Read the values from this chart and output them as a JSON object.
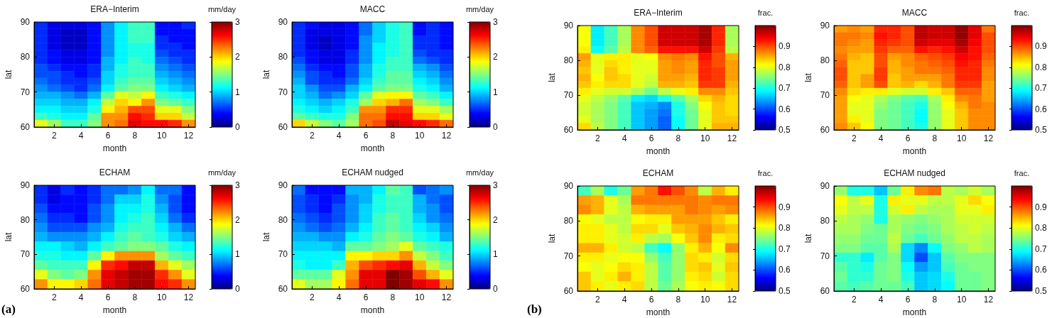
{
  "chart_data": [
    {
      "type": "heatmap",
      "title": "ERA−Interim",
      "xlabel": "month",
      "ylabel": "lat",
      "clabel": "mm/day",
      "x": [
        1,
        2,
        3,
        4,
        5,
        6,
        7,
        8,
        9,
        10,
        11,
        12
      ],
      "xlim": [
        0.5,
        12.5
      ],
      "xticks": [
        2,
        4,
        6,
        8,
        10,
        12
      ],
      "ylim": [
        60,
        90
      ],
      "yticks": [
        60,
        70,
        80,
        90
      ],
      "clim": [
        0,
        3
      ],
      "cticks": [
        0,
        1,
        2,
        3
      ],
      "cells": [
        [
          0.5,
          0.3,
          0.3,
          0.3,
          0.4,
          0.8,
          1.1,
          1.3,
          1.3,
          0.4,
          0.4,
          0.5
        ],
        [
          0.5,
          0.3,
          0.2,
          0.2,
          0.4,
          0.8,
          1.1,
          1.3,
          1.3,
          0.4,
          0.4,
          0.4
        ],
        [
          0.5,
          0.3,
          0.2,
          0.2,
          0.4,
          0.8,
          1.1,
          1.3,
          1.3,
          0.5,
          0.4,
          0.4
        ],
        [
          0.5,
          0.3,
          0.2,
          0.2,
          0.4,
          0.8,
          1.1,
          1.2,
          1.2,
          0.5,
          0.5,
          0.4
        ],
        [
          0.5,
          0.4,
          0.3,
          0.3,
          0.4,
          0.8,
          1.1,
          1.2,
          1.2,
          0.6,
          0.5,
          0.5
        ],
        [
          0.5,
          0.4,
          0.3,
          0.3,
          0.4,
          0.9,
          1.1,
          1.3,
          1.2,
          0.7,
          0.6,
          0.5
        ],
        [
          0.6,
          0.5,
          0.4,
          0.4,
          0.5,
          0.9,
          1.2,
          1.3,
          1.3,
          0.8,
          0.7,
          0.6
        ],
        [
          0.6,
          0.6,
          0.5,
          0.4,
          0.5,
          1.0,
          1.2,
          1.3,
          1.3,
          0.9,
          0.8,
          0.7
        ],
        [
          0.7,
          0.6,
          0.5,
          0.5,
          0.6,
          1.0,
          1.3,
          1.4,
          1.4,
          1.0,
          0.9,
          0.8
        ],
        [
          0.8,
          0.7,
          0.6,
          0.5,
          0.7,
          1.1,
          1.4,
          1.5,
          1.5,
          1.1,
          1.0,
          0.9
        ],
        [
          0.9,
          0.9,
          0.8,
          0.7,
          0.9,
          1.4,
          1.8,
          1.7,
          1.9,
          1.3,
          1.2,
          1.1
        ],
        [
          1.0,
          1.0,
          0.9,
          0.9,
          1.1,
          1.7,
          2.0,
          1.9,
          2.2,
          1.5,
          1.4,
          1.3
        ],
        [
          1.1,
          1.1,
          1.0,
          1.0,
          1.2,
          1.9,
          2.1,
          2.4,
          2.4,
          1.8,
          1.8,
          1.5
        ],
        [
          1.3,
          1.2,
          1.1,
          1.1,
          1.4,
          2.2,
          2.2,
          2.6,
          2.5,
          2.0,
          2.0,
          1.7
        ],
        [
          1.8,
          1.6,
          1.3,
          1.3,
          1.5,
          2.2,
          2.3,
          2.7,
          2.6,
          2.6,
          2.5,
          2.2
        ]
      ]
    },
    {
      "type": "heatmap",
      "title": "MACC",
      "xlabel": "month",
      "ylabel": "lat",
      "clabel": "mm/day",
      "x": [
        1,
        2,
        3,
        4,
        5,
        6,
        7,
        8,
        9,
        10,
        11,
        12
      ],
      "xlim": [
        0.5,
        12.5
      ],
      "xticks": [
        2,
        4,
        6,
        8,
        10,
        12
      ],
      "ylim": [
        60,
        90
      ],
      "yticks": [
        60,
        70,
        80,
        90
      ],
      "clim": [
        0,
        3
      ],
      "cticks": [
        0,
        1,
        2,
        3
      ],
      "cells": [
        [
          0.5,
          0.4,
          0.3,
          0.3,
          0.4,
          0.7,
          1.0,
          1.2,
          1.3,
          0.4,
          0.5,
          0.4
        ],
        [
          0.5,
          0.3,
          0.3,
          0.3,
          0.4,
          0.7,
          1.0,
          1.2,
          1.3,
          0.4,
          0.5,
          0.4
        ],
        [
          0.5,
          0.3,
          0.2,
          0.3,
          0.4,
          0.8,
          1.0,
          1.2,
          1.3,
          0.5,
          0.5,
          0.4
        ],
        [
          0.5,
          0.3,
          0.2,
          0.3,
          0.4,
          0.8,
          1.1,
          1.2,
          1.3,
          0.5,
          0.5,
          0.4
        ],
        [
          0.5,
          0.4,
          0.3,
          0.3,
          0.5,
          0.8,
          1.1,
          1.2,
          1.3,
          0.6,
          0.5,
          0.5
        ],
        [
          0.6,
          0.4,
          0.3,
          0.3,
          0.5,
          0.8,
          1.1,
          1.3,
          1.3,
          0.7,
          0.6,
          0.5
        ],
        [
          0.7,
          0.5,
          0.4,
          0.4,
          0.6,
          0.9,
          1.2,
          1.3,
          1.3,
          0.9,
          0.8,
          0.6
        ],
        [
          0.8,
          0.6,
          0.5,
          0.4,
          0.6,
          0.9,
          1.2,
          1.4,
          1.4,
          1.0,
          0.9,
          0.7
        ],
        [
          0.9,
          0.6,
          0.5,
          0.5,
          0.7,
          1.0,
          1.3,
          1.4,
          1.4,
          1.1,
          1.0,
          0.8
        ],
        [
          1.0,
          0.8,
          0.6,
          0.6,
          0.9,
          1.1,
          1.4,
          1.5,
          1.5,
          1.2,
          1.1,
          0.9
        ],
        [
          1.0,
          0.9,
          0.7,
          0.8,
          1.0,
          1.4,
          1.8,
          1.9,
          1.9,
          1.4,
          1.3,
          1.1
        ],
        [
          1.1,
          1.0,
          0.9,
          1.0,
          1.2,
          1.6,
          2.0,
          2.1,
          2.3,
          1.6,
          1.5,
          1.3
        ],
        [
          1.2,
          1.1,
          1.0,
          1.1,
          1.3,
          2.2,
          2.2,
          2.5,
          2.5,
          1.8,
          1.8,
          1.6
        ],
        [
          1.4,
          1.3,
          1.2,
          1.2,
          1.5,
          2.3,
          2.3,
          2.6,
          2.6,
          2.0,
          2.0,
          1.8
        ],
        [
          2.0,
          1.7,
          1.5,
          1.4,
          1.6,
          2.3,
          2.4,
          2.8,
          2.7,
          2.6,
          2.5,
          2.3
        ]
      ]
    },
    {
      "type": "heatmap",
      "title": "ECHAM",
      "xlabel": "month",
      "ylabel": "lat",
      "clabel": "mm/day",
      "annotations": [
        "(a)"
      ],
      "x": [
        1,
        2,
        3,
        4,
        5,
        6,
        7,
        8,
        9,
        10,
        11,
        12
      ],
      "xlim": [
        0.5,
        12.5
      ],
      "xticks": [
        2,
        4,
        6,
        8,
        10,
        12
      ],
      "ylim": [
        60,
        90
      ],
      "yticks": [
        60,
        70,
        80,
        90
      ],
      "clim": [
        0,
        3
      ],
      "cticks": [
        0,
        1,
        2,
        3
      ],
      "cells": [
        [
          0.5,
          0.3,
          0.5,
          0.4,
          0.5,
          0.7,
          0.7,
          0.8,
          1.1,
          0.7,
          0.7,
          0.4
        ],
        [
          0.5,
          0.3,
          0.4,
          0.4,
          0.5,
          0.7,
          1.0,
          1.0,
          1.2,
          0.8,
          0.6,
          0.4
        ],
        [
          0.6,
          0.4,
          0.4,
          0.4,
          0.6,
          0.8,
          1.1,
          1.1,
          1.2,
          0.9,
          0.6,
          0.4
        ],
        [
          0.7,
          0.5,
          0.5,
          0.4,
          0.6,
          0.8,
          1.1,
          1.2,
          1.3,
          1.0,
          0.7,
          0.5
        ],
        [
          0.8,
          0.6,
          0.6,
          0.6,
          0.8,
          0.9,
          1.2,
          1.3,
          1.3,
          1.1,
          0.9,
          0.7
        ],
        [
          0.9,
          0.8,
          0.8,
          0.8,
          0.9,
          1.1,
          1.3,
          1.4,
          1.3,
          1.2,
          1.0,
          0.9
        ],
        [
          1.1,
          1.1,
          1.0,
          0.9,
          1.1,
          1.3,
          1.4,
          1.5,
          1.5,
          1.4,
          1.2,
          1.1
        ],
        [
          1.2,
          1.2,
          1.1,
          1.1,
          1.4,
          1.9,
          2.2,
          2.2,
          2.2,
          1.6,
          1.4,
          1.3
        ],
        [
          1.4,
          1.3,
          1.3,
          1.3,
          1.9,
          2.5,
          2.6,
          2.8,
          2.8,
          2.1,
          1.8,
          1.6
        ],
        [
          1.8,
          1.5,
          1.4,
          1.5,
          2.2,
          2.7,
          2.8,
          2.9,
          2.9,
          2.5,
          2.2,
          1.8
        ],
        [
          2.2,
          1.9,
          1.9,
          2.0,
          2.3,
          2.7,
          2.8,
          2.9,
          2.9,
          2.6,
          2.5,
          2.2
        ]
      ]
    },
    {
      "type": "heatmap",
      "title": "ECHAM nudged",
      "xlabel": "month",
      "ylabel": "lat",
      "clabel": "mm/day",
      "x": [
        1,
        2,
        3,
        4,
        5,
        6,
        7,
        8,
        9,
        10,
        11,
        12
      ],
      "xlim": [
        0.5,
        12.5
      ],
      "xticks": [
        2,
        4,
        6,
        8,
        10,
        12
      ],
      "ylim": [
        60,
        90
      ],
      "yticks": [
        60,
        70,
        80,
        90
      ],
      "clim": [
        0,
        3
      ],
      "cticks": [
        0,
        1,
        2,
        3
      ],
      "cells": [
        [
          0.7,
          0.4,
          0.4,
          0.4,
          0.9,
          0.9,
          1.1,
          1.4,
          1.3,
          0.6,
          0.7,
          0.8
        ],
        [
          0.6,
          0.5,
          0.4,
          0.5,
          0.8,
          0.9,
          1.2,
          1.3,
          1.3,
          0.9,
          0.7,
          0.6
        ],
        [
          0.6,
          0.5,
          0.4,
          0.6,
          0.8,
          1.0,
          1.2,
          1.3,
          1.3,
          0.9,
          0.8,
          0.6
        ],
        [
          0.7,
          0.6,
          0.5,
          0.6,
          0.8,
          1.0,
          1.3,
          1.4,
          1.3,
          1.0,
          0.8,
          0.7
        ],
        [
          0.8,
          0.7,
          0.6,
          0.7,
          0.9,
          1.1,
          1.3,
          1.4,
          1.3,
          1.1,
          1.0,
          0.8
        ],
        [
          0.9,
          0.9,
          0.8,
          0.8,
          1.1,
          1.2,
          1.4,
          1.5,
          1.4,
          1.2,
          1.1,
          0.9
        ],
        [
          1.0,
          1.0,
          1.0,
          0.9,
          1.4,
          1.4,
          1.5,
          1.6,
          1.8,
          1.4,
          1.3,
          1.2
        ],
        [
          1.1,
          1.1,
          1.1,
          1.1,
          1.9,
          1.9,
          2.0,
          2.0,
          2.2,
          1.7,
          1.5,
          1.3
        ],
        [
          1.2,
          1.1,
          1.1,
          1.3,
          2.1,
          2.4,
          2.5,
          2.6,
          2.7,
          2.1,
          1.7,
          1.5
        ],
        [
          1.4,
          1.4,
          1.4,
          1.8,
          2.2,
          2.7,
          2.7,
          3.0,
          2.9,
          2.4,
          2.1,
          1.8
        ],
        [
          1.8,
          1.6,
          1.6,
          1.9,
          2.3,
          2.7,
          2.7,
          3.0,
          2.9,
          2.7,
          2.6,
          2.2
        ]
      ]
    },
    {
      "type": "heatmap",
      "title": "ERA−Interim",
      "xlabel": "month",
      "ylabel": "lat",
      "clabel": "frac.",
      "x": [
        1,
        2,
        3,
        4,
        5,
        6,
        7,
        8,
        9,
        10,
        11,
        12
      ],
      "xlim": [
        0.5,
        12.5
      ],
      "xticks": [
        2,
        4,
        6,
        8,
        10,
        12
      ],
      "ylim": [
        60,
        90
      ],
      "yticks": [
        60,
        70,
        80,
        90
      ],
      "clim": [
        0.5,
        1.0
      ],
      "cticks": [
        0.5,
        0.6,
        0.7,
        0.8,
        0.9
      ],
      "cells": [
        [
          0.81,
          0.68,
          0.72,
          0.77,
          0.87,
          0.9,
          0.96,
          0.96,
          0.96,
          0.98,
          0.92,
          0.77
        ],
        [
          0.81,
          0.68,
          0.72,
          0.77,
          0.87,
          0.9,
          0.96,
          0.96,
          0.96,
          0.98,
          0.92,
          0.77
        ],
        [
          0.81,
          0.68,
          0.72,
          0.77,
          0.87,
          0.9,
          0.96,
          0.96,
          0.96,
          0.98,
          0.92,
          0.77
        ],
        [
          0.82,
          0.69,
          0.73,
          0.78,
          0.87,
          0.89,
          0.93,
          0.93,
          0.93,
          0.96,
          0.91,
          0.78
        ],
        [
          0.86,
          0.8,
          0.82,
          0.82,
          0.8,
          0.81,
          0.87,
          0.88,
          0.87,
          0.93,
          0.9,
          0.85
        ],
        [
          0.85,
          0.8,
          0.83,
          0.82,
          0.8,
          0.8,
          0.86,
          0.87,
          0.86,
          0.92,
          0.9,
          0.86
        ],
        [
          0.84,
          0.8,
          0.84,
          0.82,
          0.8,
          0.8,
          0.86,
          0.87,
          0.86,
          0.92,
          0.91,
          0.86
        ],
        [
          0.85,
          0.81,
          0.84,
          0.83,
          0.8,
          0.79,
          0.86,
          0.86,
          0.85,
          0.92,
          0.91,
          0.86
        ],
        [
          0.84,
          0.82,
          0.83,
          0.83,
          0.8,
          0.78,
          0.85,
          0.85,
          0.84,
          0.91,
          0.91,
          0.85
        ],
        [
          0.82,
          0.8,
          0.79,
          0.79,
          0.77,
          0.74,
          0.78,
          0.8,
          0.82,
          0.87,
          0.87,
          0.84
        ],
        [
          0.8,
          0.78,
          0.76,
          0.73,
          0.68,
          0.67,
          0.7,
          0.73,
          0.77,
          0.83,
          0.85,
          0.83
        ],
        [
          0.79,
          0.77,
          0.75,
          0.72,
          0.66,
          0.65,
          0.63,
          0.7,
          0.75,
          0.81,
          0.84,
          0.83
        ],
        [
          0.79,
          0.77,
          0.75,
          0.72,
          0.66,
          0.64,
          0.62,
          0.7,
          0.74,
          0.8,
          0.84,
          0.83
        ],
        [
          0.8,
          0.77,
          0.75,
          0.72,
          0.66,
          0.64,
          0.61,
          0.69,
          0.74,
          0.8,
          0.84,
          0.84
        ],
        [
          0.83,
          0.78,
          0.75,
          0.72,
          0.66,
          0.64,
          0.61,
          0.69,
          0.74,
          0.8,
          0.85,
          0.85
        ]
      ]
    },
    {
      "type": "heatmap",
      "title": "MACC",
      "xlabel": "month",
      "ylabel": "lat",
      "clabel": "frac.",
      "x": [
        1,
        2,
        3,
        4,
        5,
        6,
        7,
        8,
        9,
        10,
        11,
        12
      ],
      "xlim": [
        0.5,
        12.5
      ],
      "xticks": [
        2,
        4,
        6,
        8,
        10,
        12
      ],
      "ylim": [
        60,
        90
      ],
      "yticks": [
        60,
        70,
        80,
        90
      ],
      "clim": [
        0.5,
        1.0
      ],
      "cticks": [
        0.5,
        0.6,
        0.7,
        0.8,
        0.9
      ],
      "cells": [
        [
          0.86,
          0.87,
          0.86,
          0.92,
          0.92,
          0.9,
          0.97,
          0.96,
          0.96,
          0.99,
          0.95,
          0.88
        ],
        [
          0.88,
          0.88,
          0.87,
          0.93,
          0.92,
          0.9,
          0.97,
          0.96,
          0.96,
          0.99,
          0.95,
          0.9
        ],
        [
          0.88,
          0.87,
          0.86,
          0.92,
          0.91,
          0.9,
          0.96,
          0.95,
          0.95,
          0.98,
          0.94,
          0.9
        ],
        [
          0.87,
          0.86,
          0.86,
          0.91,
          0.89,
          0.89,
          0.93,
          0.92,
          0.93,
          0.96,
          0.93,
          0.9
        ],
        [
          0.88,
          0.85,
          0.84,
          0.9,
          0.86,
          0.87,
          0.89,
          0.9,
          0.91,
          0.94,
          0.93,
          0.89
        ],
        [
          0.89,
          0.84,
          0.84,
          0.9,
          0.85,
          0.87,
          0.88,
          0.89,
          0.9,
          0.93,
          0.92,
          0.88
        ],
        [
          0.9,
          0.84,
          0.84,
          0.91,
          0.85,
          0.86,
          0.88,
          0.88,
          0.89,
          0.92,
          0.92,
          0.87
        ],
        [
          0.9,
          0.84,
          0.86,
          0.91,
          0.84,
          0.86,
          0.86,
          0.86,
          0.88,
          0.92,
          0.92,
          0.87
        ],
        [
          0.89,
          0.84,
          0.86,
          0.9,
          0.84,
          0.85,
          0.83,
          0.85,
          0.88,
          0.91,
          0.91,
          0.86
        ],
        [
          0.87,
          0.83,
          0.82,
          0.82,
          0.8,
          0.79,
          0.79,
          0.82,
          0.84,
          0.89,
          0.89,
          0.86
        ],
        [
          0.86,
          0.81,
          0.8,
          0.77,
          0.75,
          0.73,
          0.72,
          0.77,
          0.82,
          0.87,
          0.88,
          0.86
        ],
        [
          0.86,
          0.8,
          0.8,
          0.76,
          0.74,
          0.72,
          0.7,
          0.76,
          0.81,
          0.85,
          0.88,
          0.87
        ],
        [
          0.86,
          0.8,
          0.8,
          0.75,
          0.74,
          0.72,
          0.69,
          0.76,
          0.8,
          0.84,
          0.87,
          0.87
        ],
        [
          0.86,
          0.82,
          0.8,
          0.75,
          0.74,
          0.72,
          0.69,
          0.76,
          0.8,
          0.84,
          0.87,
          0.87
        ],
        [
          0.87,
          0.84,
          0.81,
          0.75,
          0.74,
          0.72,
          0.7,
          0.76,
          0.8,
          0.84,
          0.87,
          0.87
        ]
      ]
    },
    {
      "type": "heatmap",
      "title": "ECHAM",
      "xlabel": "month",
      "ylabel": "lat",
      "clabel": "frac.",
      "annotations": [
        "(b)"
      ],
      "x": [
        1,
        2,
        3,
        4,
        5,
        6,
        7,
        8,
        9,
        10,
        11,
        12
      ],
      "xlim": [
        0.5,
        12.5
      ],
      "xticks": [
        2,
        4,
        6,
        8,
        10,
        12
      ],
      "ylim": [
        60,
        90
      ],
      "yticks": [
        60,
        70,
        80,
        90
      ],
      "clim": [
        0.5,
        1.0
      ],
      "cticks": [
        0.5,
        0.6,
        0.7,
        0.8,
        0.9
      ],
      "cells": [
        [
          0.72,
          0.77,
          0.7,
          0.74,
          0.86,
          0.88,
          0.93,
          0.9,
          0.87,
          0.78,
          0.85,
          0.82
        ],
        [
          0.86,
          0.85,
          0.8,
          0.77,
          0.88,
          0.88,
          0.88,
          0.88,
          0.88,
          0.87,
          0.88,
          0.88
        ],
        [
          0.87,
          0.85,
          0.8,
          0.78,
          0.85,
          0.86,
          0.86,
          0.86,
          0.88,
          0.87,
          0.86,
          0.87
        ],
        [
          0.81,
          0.8,
          0.78,
          0.78,
          0.81,
          0.82,
          0.82,
          0.86,
          0.86,
          0.86,
          0.84,
          0.82
        ],
        [
          0.82,
          0.82,
          0.8,
          0.78,
          0.83,
          0.83,
          0.8,
          0.84,
          0.85,
          0.87,
          0.85,
          0.84
        ],
        [
          0.82,
          0.82,
          0.8,
          0.79,
          0.82,
          0.78,
          0.77,
          0.81,
          0.84,
          0.87,
          0.82,
          0.83
        ],
        [
          0.85,
          0.85,
          0.82,
          0.79,
          0.78,
          0.72,
          0.69,
          0.76,
          0.82,
          0.85,
          0.81,
          0.87
        ],
        [
          0.82,
          0.82,
          0.8,
          0.81,
          0.81,
          0.76,
          0.72,
          0.76,
          0.83,
          0.82,
          0.79,
          0.83
        ],
        [
          0.81,
          0.8,
          0.81,
          0.83,
          0.82,
          0.78,
          0.73,
          0.76,
          0.83,
          0.84,
          0.8,
          0.84
        ],
        [
          0.84,
          0.8,
          0.82,
          0.85,
          0.82,
          0.78,
          0.73,
          0.76,
          0.82,
          0.83,
          0.79,
          0.83
        ],
        [
          0.84,
          0.82,
          0.8,
          0.82,
          0.83,
          0.78,
          0.74,
          0.77,
          0.81,
          0.82,
          0.81,
          0.83
        ]
      ]
    },
    {
      "type": "heatmap",
      "title": "ECHAM nudged",
      "xlabel": "month",
      "ylabel": "lat",
      "clabel": "frac.",
      "x": [
        1,
        2,
        3,
        4,
        5,
        6,
        7,
        8,
        9,
        10,
        11,
        12
      ],
      "xlim": [
        0.5,
        12.5
      ],
      "xticks": [
        2,
        4,
        6,
        8,
        10,
        12
      ],
      "ylim": [
        60,
        90
      ],
      "yticks": [
        60,
        70,
        80,
        90
      ],
      "clim": [
        0.5,
        1.0
      ],
      "cticks": [
        0.5,
        0.6,
        0.7,
        0.8,
        0.9
      ],
      "cells": [
        [
          0.76,
          0.7,
          0.7,
          0.66,
          0.74,
          0.82,
          0.87,
          0.88,
          0.78,
          0.77,
          0.79,
          0.77
        ],
        [
          0.81,
          0.78,
          0.8,
          0.7,
          0.82,
          0.8,
          0.8,
          0.78,
          0.78,
          0.8,
          0.83,
          0.81
        ],
        [
          0.8,
          0.78,
          0.78,
          0.7,
          0.79,
          0.82,
          0.78,
          0.77,
          0.77,
          0.8,
          0.8,
          0.82
        ],
        [
          0.78,
          0.77,
          0.76,
          0.7,
          0.77,
          0.76,
          0.75,
          0.76,
          0.77,
          0.79,
          0.79,
          0.79
        ],
        [
          0.77,
          0.77,
          0.75,
          0.74,
          0.77,
          0.75,
          0.74,
          0.75,
          0.77,
          0.78,
          0.79,
          0.78
        ],
        [
          0.76,
          0.76,
          0.74,
          0.74,
          0.78,
          0.74,
          0.72,
          0.74,
          0.76,
          0.78,
          0.78,
          0.77
        ],
        [
          0.75,
          0.75,
          0.73,
          0.73,
          0.77,
          0.67,
          0.63,
          0.69,
          0.75,
          0.76,
          0.78,
          0.77
        ],
        [
          0.71,
          0.71,
          0.68,
          0.73,
          0.75,
          0.67,
          0.6,
          0.66,
          0.73,
          0.75,
          0.75,
          0.75
        ],
        [
          0.73,
          0.71,
          0.7,
          0.74,
          0.75,
          0.69,
          0.64,
          0.66,
          0.72,
          0.74,
          0.75,
          0.75
        ],
        [
          0.74,
          0.71,
          0.71,
          0.74,
          0.75,
          0.7,
          0.66,
          0.67,
          0.7,
          0.74,
          0.74,
          0.75
        ],
        [
          0.73,
          0.72,
          0.73,
          0.74,
          0.74,
          0.72,
          0.66,
          0.67,
          0.69,
          0.74,
          0.74,
          0.75
        ]
      ]
    }
  ]
}
